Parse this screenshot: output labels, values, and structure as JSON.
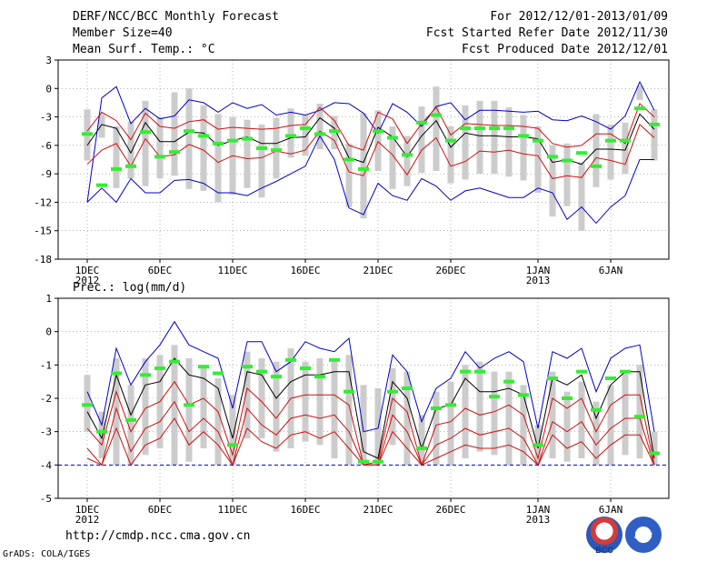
{
  "header": {
    "title": "DERF/NCC/BCC Monthly Forecast",
    "member_size": "Member Size=40",
    "variable": "Mean Surf. Temp.: °C",
    "period": "For 2012/12/01-2013/01/09",
    "start_date": "Fcst Started Refer Date 2012/11/30",
    "produced_date": "Fcst Produced Date 2012/12/01"
  },
  "footer": {
    "url": "http://cmdp.ncc.cma.gov.cn",
    "credit": "GrADS: COLA/IGES",
    "logo_left": "BCC",
    "logo_right": "NCC"
  },
  "colors": {
    "mean": "#000000",
    "inner": "#d01010",
    "outer": "#0000cc",
    "box": "#cccccc",
    "obs": "#33ee33",
    "baseline": "#0000cc"
  },
  "chart_data": [
    {
      "type": "line",
      "title": "Mean Surf. Temp.: °C",
      "xlabel": "",
      "ylabel": "",
      "ylim": [
        -18,
        3
      ],
      "yticks": [
        3,
        0,
        -3,
        -6,
        -9,
        -12,
        -15,
        -18
      ],
      "x_ticks": [
        {
          "day": 1,
          "label": "1DEC",
          "sub": "2012"
        },
        {
          "day": 6,
          "label": "6DEC",
          "sub": ""
        },
        {
          "day": 11,
          "label": "11DEC",
          "sub": ""
        },
        {
          "day": 16,
          "label": "16DEC",
          "sub": ""
        },
        {
          "day": 21,
          "label": "21DEC",
          "sub": ""
        },
        {
          "day": 26,
          "label": "26DEC",
          "sub": ""
        },
        {
          "day": 32,
          "label": "1JAN",
          "sub": "2013"
        },
        {
          "day": 37,
          "label": "6JAN",
          "sub": ""
        }
      ],
      "days": 40,
      "series": [
        {
          "name": "ensemble-max",
          "role": "outer",
          "values": [
            -12,
            -1,
            0.2,
            -3.7,
            -2.1,
            -3.2,
            -2.9,
            -1.2,
            -1.5,
            -2.5,
            -1.5,
            -2.1,
            -1.7,
            -2.8,
            -2.5,
            -2.8,
            -2.3,
            -1.5,
            -1.6,
            -2.6,
            -4.7,
            -1.6,
            -2.5,
            -4,
            -1.9,
            -1.5,
            -3.3,
            -2.3,
            -2.3,
            -2.4,
            -2.5,
            -2.4,
            -3.3,
            -3.4,
            -2.9,
            -3.5,
            -4.3,
            -2.9,
            0.7,
            -2.3
          ]
        },
        {
          "name": "ensemble-min",
          "role": "outer",
          "values": [
            -12,
            -10.5,
            -12,
            -9.5,
            -11,
            -11,
            -9.7,
            -9.6,
            -10,
            -11,
            -11,
            -11.3,
            -10.5,
            -9.8,
            -9,
            -8.2,
            -5,
            -7.5,
            -12.6,
            -13.3,
            -10,
            -11.3,
            -11.8,
            -9.5,
            -10.3,
            -11.8,
            -10.8,
            -10.5,
            -11,
            -11.5,
            -11.5,
            -10.5,
            -11,
            -13.8,
            -12.5,
            -14.2,
            -12.5,
            -11.3,
            -7.5,
            -7.5
          ]
        },
        {
          "name": "upper-quantile",
          "role": "inner",
          "values": [
            -4.5,
            -2.5,
            -3.4,
            -5.4,
            -2.6,
            -4,
            -4.2,
            -3.5,
            -3.3,
            -4.3,
            -4.1,
            -4.2,
            -4.3,
            -4.2,
            -3.9,
            -3.8,
            -2,
            -3.4,
            -6,
            -6.5,
            -2.5,
            -3.2,
            -5.8,
            -3.7,
            -2,
            -4.9,
            -3.7,
            -3.8,
            -3.9,
            -3.9,
            -4,
            -4.2,
            -5.8,
            -6.2,
            -6,
            -4.8,
            -4.8,
            -5.8,
            -1.6,
            -3
          ]
        },
        {
          "name": "lower-quantile",
          "role": "inner",
          "values": [
            -8,
            -6.5,
            -5.8,
            -8.2,
            -5.3,
            -7.2,
            -7,
            -5.9,
            -6.5,
            -7.8,
            -7.1,
            -7.4,
            -7.3,
            -6.6,
            -6.9,
            -6.5,
            -4.5,
            -5.5,
            -8.8,
            -9.2,
            -5.6,
            -7,
            -9.1,
            -6.5,
            -5.2,
            -8.2,
            -7.7,
            -6.6,
            -6.7,
            -6.5,
            -6.9,
            -7.1,
            -9.5,
            -9.2,
            -9.4,
            -7.3,
            -7.6,
            -8,
            -3.8,
            -5.2
          ]
        },
        {
          "name": "ensemble-mean",
          "role": "mean",
          "values": [
            -6,
            -3.8,
            -4.2,
            -6.8,
            -3.6,
            -5.6,
            -5.6,
            -4.6,
            -4.7,
            -6,
            -5.5,
            -5.1,
            -5.8,
            -5.8,
            -5.2,
            -5.1,
            -3.1,
            -4.2,
            -7.3,
            -7.8,
            -4.1,
            -5.1,
            -7.2,
            -5,
            -3.4,
            -6.2,
            -4.7,
            -5,
            -5,
            -5.1,
            -5.1,
            -5.3,
            -7.8,
            -7.5,
            -8,
            -6.4,
            -6.4,
            -6.5,
            -2.7,
            -4.3
          ]
        }
      ],
      "boxes": [
        [
          -7.6,
          -2.2
        ],
        [
          -5.2,
          -2.7
        ],
        [
          -10.5,
          -4
        ],
        [
          -9.5,
          -3.5
        ],
        [
          -10.3,
          -1.3
        ],
        [
          -9.5,
          -3
        ],
        [
          -9.2,
          -0.4
        ],
        [
          -10.6,
          0
        ],
        [
          -10.8,
          -1.8
        ],
        [
          -12,
          -2.7
        ],
        [
          -11.2,
          -3
        ],
        [
          -10.5,
          -3.3
        ],
        [
          -11.5,
          -3.8
        ],
        [
          -9.5,
          -3.1
        ],
        [
          -7.3,
          -2.1
        ],
        [
          -7.1,
          -2.8
        ],
        [
          -6.4,
          -1.6
        ],
        [
          -6.4,
          -2.9
        ],
        [
          -12.5,
          -5.8
        ],
        [
          -13.7,
          -2.6
        ],
        [
          -8.7,
          -2.3
        ],
        [
          -10.6,
          -4
        ],
        [
          -10.3,
          -5
        ],
        [
          -8.9,
          -1.9
        ],
        [
          -8.7,
          0.2
        ],
        [
          -10,
          -4
        ],
        [
          -9.6,
          -1.8
        ],
        [
          -9,
          -1.3
        ],
        [
          -9,
          -1.3
        ],
        [
          -9.3,
          -2
        ],
        [
          -9.7,
          -2.8
        ],
        [
          -11,
          -4
        ],
        [
          -13.5,
          -6
        ],
        [
          -12.4,
          -5.8
        ],
        [
          -15,
          -7.8
        ],
        [
          -10.4,
          -2.7
        ],
        [
          -9.6,
          -3.8
        ],
        [
          -9,
          -3.6
        ],
        [
          -1.2,
          0.3
        ],
        [
          -7.6,
          -2.2
        ]
      ],
      "obs": [
        -4.8,
        -10.2,
        -8.5,
        -8.2,
        -4.6,
        -7.2,
        -6.7,
        -4.5,
        -5,
        -5.8,
        -5.5,
        -5.3,
        -6.3,
        -6.5,
        -5,
        -4.2,
        -4.8,
        -4.5,
        -7.5,
        -8.5,
        -4.5,
        -5.2,
        -7,
        -3.6,
        -2.8,
        -5.5,
        -4.2,
        -4.2,
        -4.2,
        -4.2,
        -5,
        -5.5,
        -7.2,
        -7.6,
        -6.8,
        -8.2,
        -5.5,
        -5.5,
        -2.1,
        -3.8
      ]
    },
    {
      "type": "line",
      "title": "Prec.: log(mm/d)",
      "xlabel": "",
      "ylabel": "",
      "ylim": [
        -5,
        1
      ],
      "yticks": [
        1,
        0,
        -1,
        -2,
        -3,
        -4,
        -5
      ],
      "x_ticks": [
        {
          "day": 1,
          "label": "1DEC",
          "sub": "2012"
        },
        {
          "day": 6,
          "label": "6DEC",
          "sub": ""
        },
        {
          "day": 11,
          "label": "11DEC",
          "sub": ""
        },
        {
          "day": 16,
          "label": "16DEC",
          "sub": ""
        },
        {
          "day": 21,
          "label": "21DEC",
          "sub": ""
        },
        {
          "day": 26,
          "label": "26DEC",
          "sub": ""
        },
        {
          "day": 32,
          "label": "1JAN",
          "sub": "2013"
        },
        {
          "day": 37,
          "label": "6JAN",
          "sub": ""
        }
      ],
      "days": 40,
      "baseline": -4,
      "series": [
        {
          "name": "ensemble-max",
          "role": "outer",
          "values": [
            -1.8,
            -2.8,
            -0.5,
            -1.6,
            -0.9,
            -0.4,
            0.3,
            -0.4,
            -0.6,
            -0.8,
            -2.3,
            -0.3,
            -0.3,
            -1.2,
            -0.9,
            -0.3,
            -0.5,
            -0.6,
            -0.2,
            -3,
            -2.9,
            -0.7,
            -1.2,
            -2.7,
            -1.7,
            -1.4,
            -0.6,
            -1.1,
            -0.8,
            -0.6,
            -0.9,
            -2.9,
            -0.6,
            -0.8,
            -0.5,
            -1.8,
            -0.8,
            -0.5,
            -0.4,
            -3
          ]
        },
        {
          "name": "upper-quantile",
          "role": "mean",
          "values": [
            -2.4,
            -3.2,
            -1.3,
            -2.5,
            -1.6,
            -1.5,
            -0.8,
            -1.3,
            -1.4,
            -1.7,
            -3.2,
            -1.2,
            -1.3,
            -2,
            -1.5,
            -1.3,
            -1.3,
            -1.2,
            -1.2,
            -3.6,
            -3.8,
            -1.5,
            -2,
            -3.5,
            -2.3,
            -2.2,
            -1.4,
            -1.8,
            -1.8,
            -1.7,
            -1.9,
            -3.5,
            -1.4,
            -1.6,
            -1.3,
            -2.6,
            -1.6,
            -1.2,
            -1.2,
            -3.8
          ]
        },
        {
          "name": "median",
          "role": "inner",
          "values": [
            -2.9,
            -3.4,
            -1.8,
            -3,
            -2.3,
            -2.1,
            -1.5,
            -2.2,
            -2,
            -2.4,
            -3.7,
            -1.7,
            -2.1,
            -2.6,
            -2,
            -1.9,
            -1.9,
            -1.9,
            -2.2,
            -4,
            -3.9,
            -2,
            -2.4,
            -4,
            -2.8,
            -2.7,
            -2.3,
            -2.5,
            -2.4,
            -2.2,
            -2.5,
            -3.8,
            -2,
            -2.3,
            -2,
            -3,
            -2.2,
            -1.9,
            -1.9,
            -4
          ]
        },
        {
          "name": "lower-quantile",
          "role": "inner",
          "values": [
            -3.5,
            -4,
            -2.3,
            -3.6,
            -2.9,
            -2.7,
            -2.1,
            -3,
            -2.6,
            -3,
            -4,
            -2.3,
            -2.8,
            -3.1,
            -2.6,
            -2.5,
            -2.6,
            -2.5,
            -3,
            -4,
            -4,
            -2.5,
            -3,
            -4,
            -3.4,
            -3.2,
            -2.9,
            -3.1,
            -3,
            -2.9,
            -3.2,
            -4,
            -2.7,
            -3,
            -2.7,
            -3.4,
            -2.9,
            -2.6,
            -2.6,
            -4
          ]
        },
        {
          "name": "lowest",
          "role": "inner",
          "values": [
            -3.8,
            -4,
            -2.9,
            -4,
            -3.4,
            -3.2,
            -2.6,
            -3.4,
            -3,
            -3.4,
            -4,
            -2.9,
            -3.3,
            -3.5,
            -3.1,
            -3,
            -3.2,
            -3,
            -3.5,
            -4,
            -4,
            -3,
            -3.5,
            -4,
            -3.8,
            -3.6,
            -3.4,
            -3.5,
            -3.5,
            -3.4,
            -3.6,
            -4,
            -3.1,
            -3.5,
            -3.3,
            -3.8,
            -3.4,
            -3.1,
            -3.1,
            -4
          ]
        }
      ],
      "boxes": [
        [
          -3,
          -1.3
        ],
        [
          -3.8,
          -2.4
        ],
        [
          -4,
          -0.8
        ],
        [
          -4,
          -1.6
        ],
        [
          -3.7,
          -0.8
        ],
        [
          -3.5,
          -0.7
        ],
        [
          -4,
          -0.4
        ],
        [
          -3.9,
          -0.8
        ],
        [
          -3.5,
          -1
        ],
        [
          -4,
          -1.4
        ],
        [
          -4,
          -1.9
        ],
        [
          -3.2,
          -0.6
        ],
        [
          -3.2,
          -0.8
        ],
        [
          -3.6,
          -0.9
        ],
        [
          -3.5,
          -0.5
        ],
        [
          -3.3,
          -0.9
        ],
        [
          -3.4,
          -0.8
        ],
        [
          -3.8,
          -0.9
        ],
        [
          -4,
          -0.7
        ],
        [
          -4,
          -1.6
        ],
        [
          -4,
          -1.7
        ],
        [
          -3.4,
          -1.1
        ],
        [
          -4,
          -1.2
        ],
        [
          -4,
          -2.5
        ],
        [
          -4,
          -1.8
        ],
        [
          -4,
          -1.5
        ],
        [
          -3.8,
          -1
        ],
        [
          -3.6,
          -0.9
        ],
        [
          -3.7,
          -1.2
        ],
        [
          -4,
          -1.2
        ],
        [
          -4,
          -1.6
        ],
        [
          -4,
          -2.8
        ],
        [
          -3.8,
          -1.2
        ],
        [
          -3.9,
          -1.8
        ],
        [
          -3.8,
          -1.5
        ],
        [
          -4,
          -2.1
        ],
        [
          -4,
          -1.6
        ],
        [
          -3.7,
          -1.2
        ],
        [
          -3.8,
          -1
        ],
        [
          -4,
          -3
        ]
      ],
      "obs": [
        -2.2,
        -3,
        -1.25,
        -2.65,
        -1.3,
        -1.1,
        -0.9,
        -2.2,
        -1.05,
        -1.25,
        -3.4,
        -1.05,
        -1.2,
        -1.35,
        -0.85,
        -1.1,
        -1.35,
        -0.85,
        -1.8,
        -3.9,
        -3.9,
        -1.8,
        -1.7,
        -3.5,
        -2.3,
        -2.2,
        -1.2,
        -1.2,
        -1.95,
        -1.5,
        -1.9,
        -3.4,
        -1.4,
        -2,
        -1.2,
        -2.35,
        -1.4,
        -1.2,
        -2.55,
        -3.65
      ]
    }
  ]
}
